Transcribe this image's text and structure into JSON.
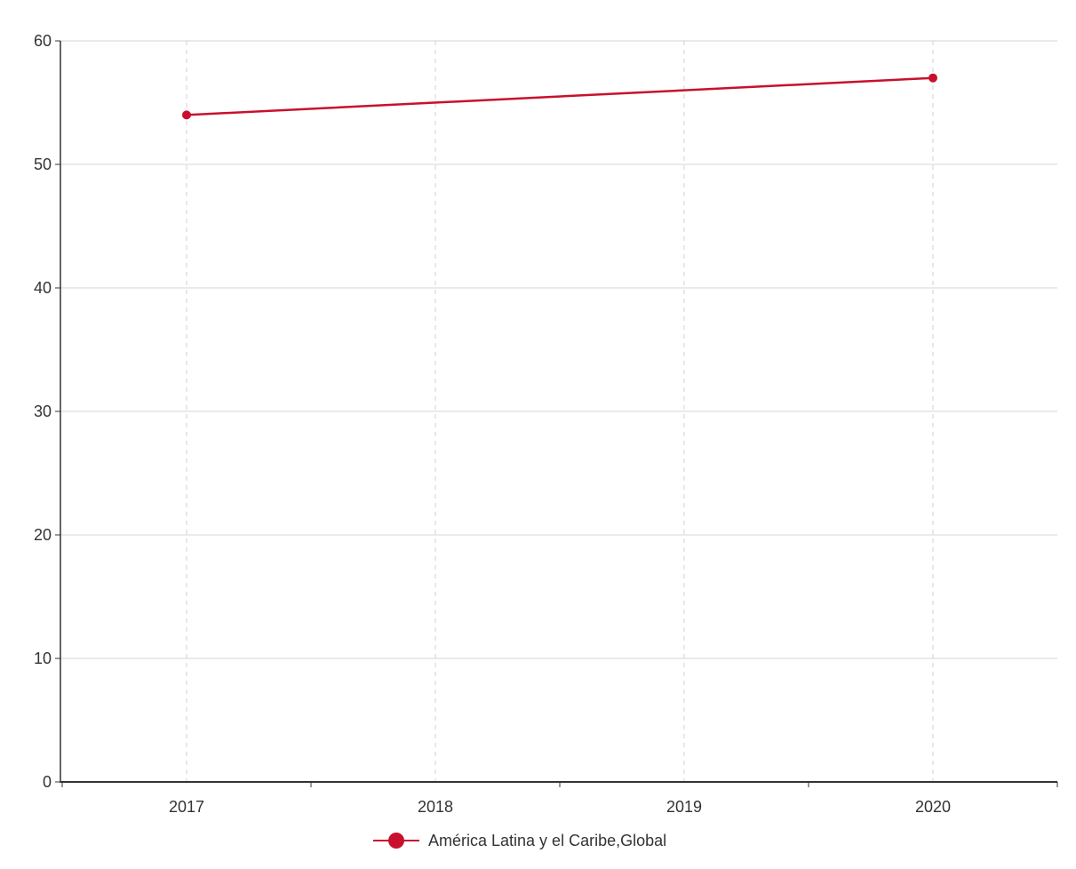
{
  "chart_data": {
    "type": "line",
    "title": "",
    "xlabel": "",
    "ylabel": "",
    "categories": [
      "2017",
      "2018",
      "2019",
      "2020"
    ],
    "ylim": [
      0,
      60
    ],
    "yticks": [
      0,
      10,
      20,
      30,
      40,
      50,
      60
    ],
    "grid": {
      "horizontal": true,
      "vertical": true,
      "vertical_style": "dashed"
    },
    "legend_position": "bottom-center",
    "series": [
      {
        "name": "América Latina y el Caribe,Global",
        "color": "#c8102e",
        "points": [
          {
            "x": "2017",
            "y": 54
          },
          {
            "x": "2020",
            "y": 57
          }
        ]
      }
    ]
  }
}
